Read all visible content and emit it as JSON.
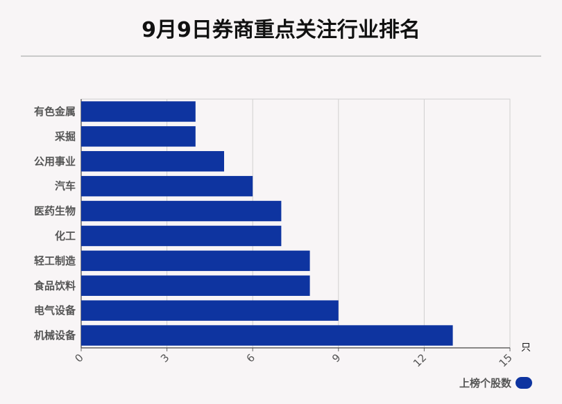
{
  "title": "9月9日券商重点关注行业排名",
  "chart_data": {
    "type": "bar",
    "orientation": "horizontal",
    "categories": [
      "有色金属",
      "采掘",
      "公用事业",
      "汽车",
      "医药生物",
      "化工",
      "轻工制造",
      "食品饮料",
      "电气设备",
      "机械设备"
    ],
    "series": [
      {
        "name": "上榜个股数",
        "values": [
          4,
          4,
          5,
          6,
          7,
          7,
          8,
          8,
          9,
          13
        ]
      }
    ],
    "xlim": [
      0,
      15
    ],
    "xticks": [
      "0",
      "3",
      "6",
      "9",
      "12",
      "15"
    ],
    "x_unit": "只",
    "grid": true,
    "legend_position": "bottom-right",
    "bar_color": "#0e34a0"
  }
}
